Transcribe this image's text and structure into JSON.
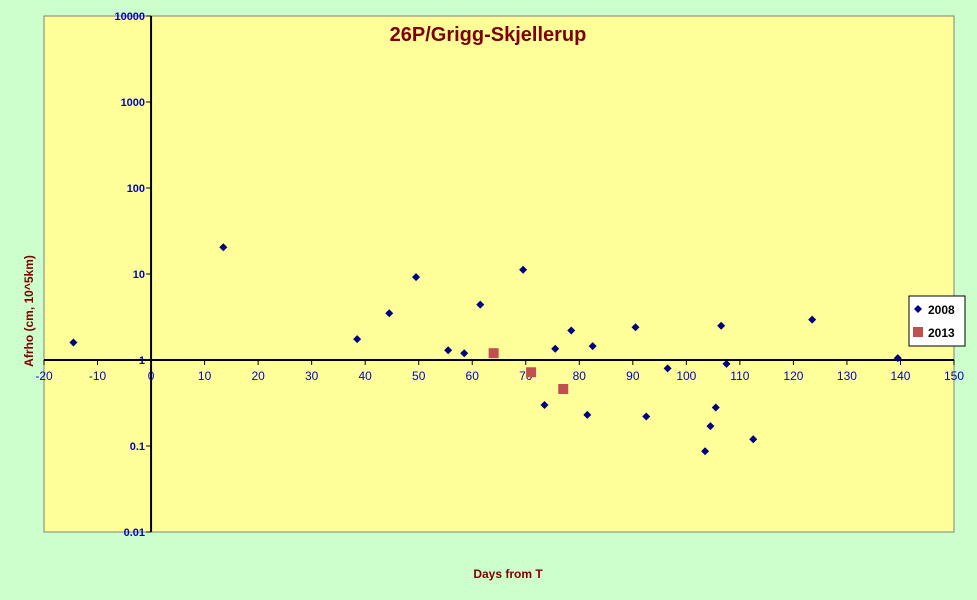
{
  "chart_data": {
    "type": "scatter",
    "title": "26P/Grigg-Skjellerup",
    "xlabel": "Days from T",
    "ylabel": "Afrho (cm, 10^5km)",
    "xlim": [
      -20,
      150
    ],
    "ylim": [
      0.01,
      10000
    ],
    "yscale": "log",
    "x_ticks": [
      "-20",
      "-10",
      "0",
      "10",
      "20",
      "30",
      "40",
      "50",
      "60",
      "70",
      "80",
      "90",
      "100",
      "110",
      "120",
      "130",
      "140",
      "150"
    ],
    "y_ticks": [
      "0.01",
      "0.1",
      "1",
      "10",
      "100",
      "1000",
      "10000"
    ],
    "legend_position": "right",
    "grid": false,
    "colors": {
      "plot_bg": "#ffff99",
      "outer_bg": "#ccffcc",
      "title": "#800000",
      "axis_text": "#0000cc",
      "label_text": "#800000"
    },
    "series": [
      {
        "name": "2008",
        "color": "#000080",
        "marker": "diamond",
        "points": [
          {
            "x": -14.5,
            "y": 1.6
          },
          {
            "x": 13.5,
            "y": 20.5
          },
          {
            "x": 38.5,
            "y": 1.75
          },
          {
            "x": 44.5,
            "y": 3.5
          },
          {
            "x": 49.5,
            "y": 9.2
          },
          {
            "x": 55.5,
            "y": 1.3
          },
          {
            "x": 58.5,
            "y": 1.2
          },
          {
            "x": 61.5,
            "y": 4.4
          },
          {
            "x": 69.5,
            "y": 11.2
          },
          {
            "x": 73.5,
            "y": 0.3
          },
          {
            "x": 75.5,
            "y": 1.35
          },
          {
            "x": 78.5,
            "y": 2.2
          },
          {
            "x": 81.5,
            "y": 0.23
          },
          {
            "x": 82.5,
            "y": 1.45
          },
          {
            "x": 90.5,
            "y": 2.4
          },
          {
            "x": 92.5,
            "y": 0.22
          },
          {
            "x": 96.5,
            "y": 0.8
          },
          {
            "x": 103.5,
            "y": 0.087
          },
          {
            "x": 104.5,
            "y": 0.17
          },
          {
            "x": 105.5,
            "y": 0.28
          },
          {
            "x": 106.5,
            "y": 2.5
          },
          {
            "x": 107.5,
            "y": 0.9
          },
          {
            "x": 112.5,
            "y": 0.12
          },
          {
            "x": 123.5,
            "y": 2.95
          },
          {
            "x": 139.5,
            "y": 1.05
          }
        ]
      },
      {
        "name": "2013",
        "color": "#c0504d",
        "marker": "square",
        "points": [
          {
            "x": 64,
            "y": 1.2
          },
          {
            "x": 71,
            "y": 0.72
          },
          {
            "x": 77,
            "y": 0.46
          }
        ]
      }
    ]
  }
}
